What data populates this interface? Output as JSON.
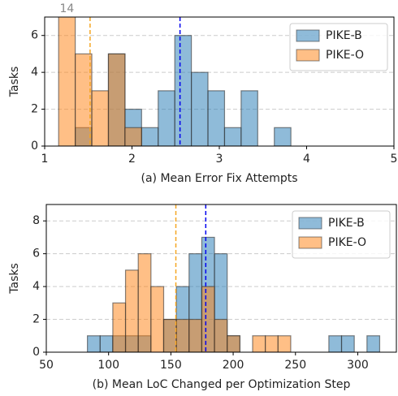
{
  "chart_data": [
    {
      "type": "histogram",
      "xlabel": "(a) Mean Error Fix Attempts",
      "ylabel": "Tasks",
      "bins": [
        1.16,
        1.35,
        1.54,
        1.73,
        1.92,
        2.11,
        2.3,
        2.49,
        2.68,
        2.87,
        3.06,
        3.25,
        3.44,
        3.63,
        3.82
      ],
      "series": [
        {
          "name": "PIKE-B",
          "color": "#1f77b4",
          "values": [
            0,
            1,
            0,
            5,
            2,
            1,
            3,
            6,
            4,
            3,
            1,
            3,
            0,
            1
          ],
          "mean": 2.55
        },
        {
          "name": "PIKE-O",
          "color": "#ff7f0e",
          "values": [
            14,
            5,
            3,
            5,
            1,
            0,
            0,
            0,
            0,
            0,
            0,
            0,
            0,
            0
          ],
          "mean": 1.52,
          "value_labels": [
            "14",
            null,
            null,
            null,
            null,
            null,
            null,
            null,
            null,
            null,
            null,
            null,
            null,
            null
          ]
        }
      ],
      "xlim": [
        1,
        5
      ],
      "xticks": [
        1,
        2,
        3,
        4,
        5
      ],
      "ylim": [
        0,
        7
      ],
      "yticks": [
        0,
        2,
        4,
        6
      ],
      "grid": true,
      "legend": "upper right"
    },
    {
      "type": "histogram",
      "xlabel": "(b) Mean LoC Changed per Optimization Step",
      "ylabel": "Tasks",
      "bins": [
        83,
        93.2,
        103.4,
        113.6,
        123.8,
        134,
        144.2,
        154.4,
        164.6,
        174.8,
        185,
        195.2,
        205.4,
        215.6,
        225.8,
        236,
        246.2,
        256.4,
        266.6,
        276.8,
        287,
        297.2,
        307.4,
        317.6
      ],
      "series": [
        {
          "name": "PIKE-B",
          "color": "#1f77b4",
          "values": [
            1,
            1,
            1,
            1,
            1,
            0,
            2,
            4,
            6,
            7,
            6,
            1,
            0,
            0,
            0,
            0,
            0,
            0,
            0,
            1,
            1,
            0,
            1
          ],
          "mean": 178
        },
        {
          "name": "PIKE-O",
          "color": "#ff7f0e",
          "values": [
            0,
            0,
            3,
            5,
            6,
            4,
            2,
            2,
            2,
            4,
            2,
            1,
            0,
            1,
            1,
            1,
            0,
            0,
            0,
            0,
            0,
            0,
            0
          ],
          "mean": 154
        }
      ],
      "xlim": [
        50,
        331
      ],
      "xticks": [
        50,
        100,
        150,
        200,
        250,
        300
      ],
      "ylim": [
        0,
        9
      ],
      "yticks": [
        0,
        2,
        4,
        6,
        8
      ],
      "grid": true,
      "legend": "upper right"
    }
  ]
}
